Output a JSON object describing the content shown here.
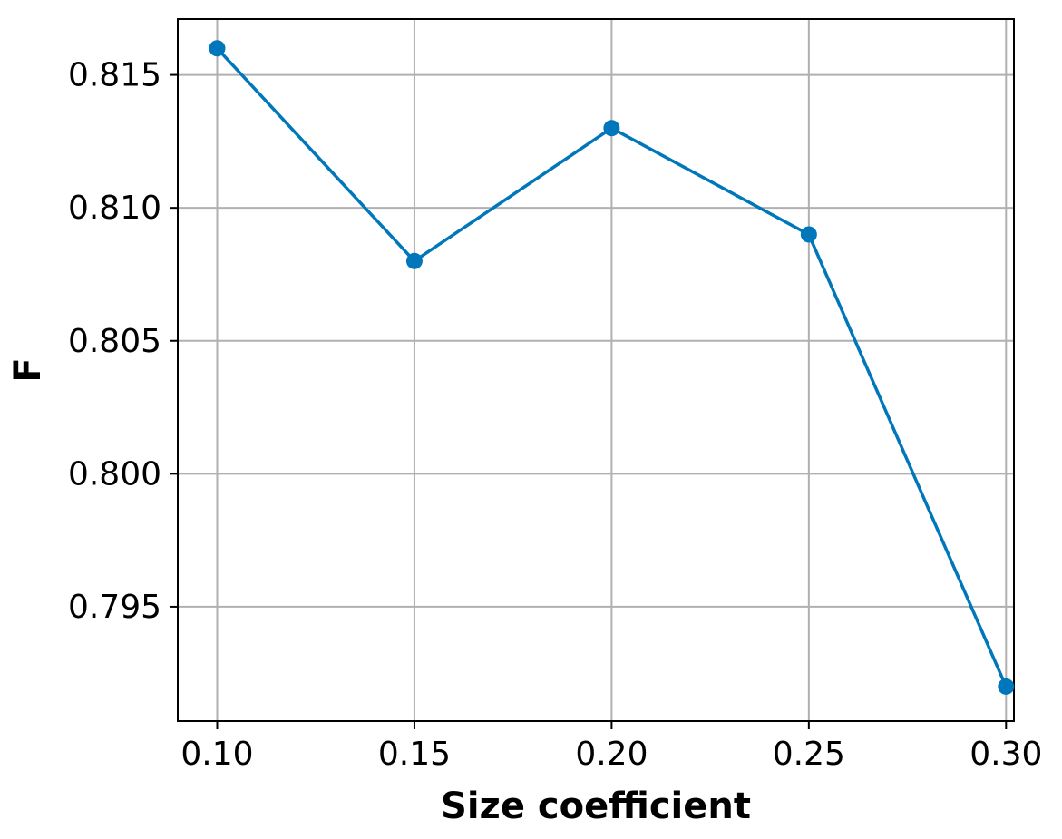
{
  "chart_data": {
    "type": "line",
    "title": "",
    "xlabel": "Size coefficient",
    "ylabel": "F",
    "x": [
      0.1,
      0.15,
      0.2,
      0.25,
      0.3
    ],
    "series": [
      {
        "values": [
          0.816,
          0.808,
          0.813,
          0.809,
          0.792
        ]
      }
    ],
    "xlim": [
      0.09,
      0.302
    ],
    "ylim": [
      0.7907,
      0.8171
    ],
    "xticks": [
      0.1,
      0.15,
      0.2,
      0.25,
      0.3
    ],
    "xtick_labels": [
      "0.10",
      "0.15",
      "0.20",
      "0.25",
      "0.30"
    ],
    "yticks": [
      0.795,
      0.8,
      0.805,
      0.81,
      0.815
    ],
    "ytick_labels": [
      "0.795",
      "0.800",
      "0.805",
      "0.810",
      "0.815"
    ],
    "grid": true,
    "legend": "none",
    "colors": {
      "line": "#0077bb",
      "grid": "#b0b0b0",
      "axes": "#000000"
    }
  }
}
